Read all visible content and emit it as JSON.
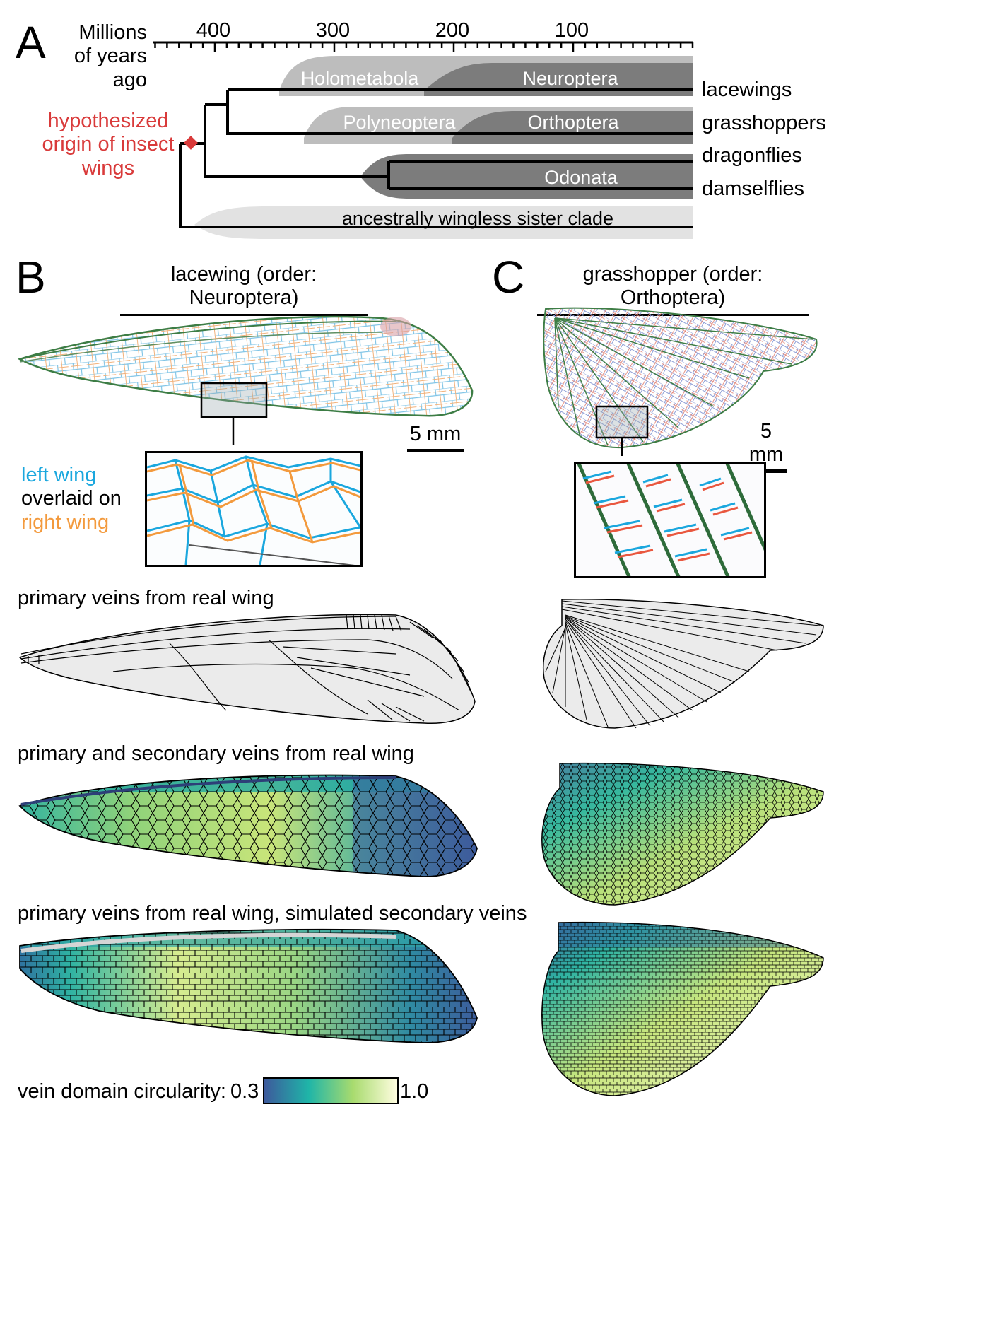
{
  "panels": {
    "a": "A",
    "b": "B",
    "c": "C"
  },
  "timeline": {
    "axis_label": "Millions of years ago",
    "axis_label_lines": [
      "Millions",
      "of years",
      "ago"
    ],
    "ticks": [
      {
        "label": "400",
        "value": 400
      },
      {
        "label": "300",
        "value": 300
      },
      {
        "label": "200",
        "value": 200
      },
      {
        "label": "100",
        "value": 100
      }
    ],
    "origin_label_lines": [
      "hypothesized",
      "origin of insect",
      "wings"
    ],
    "origin_color": "#d93a3a",
    "clades": {
      "holometabola": "Holometabola",
      "neuroptera": "Neuroptera",
      "polyneoptera": "Polyneoptera",
      "orthoptera": "Orthoptera",
      "odonata": "Odonata",
      "wingless": "ancestrally wingless sister clade"
    },
    "taxa": {
      "lacewings": "lacewings",
      "grasshoppers": "grasshoppers",
      "dragonflies": "dragonflies",
      "damselflies": "damselflies"
    },
    "colors": {
      "light": "#bdbdbd",
      "dark": "#7c7c7c",
      "lightest": "#e2e2e2"
    }
  },
  "panel_b": {
    "title": "lacewing (order: Neuroptera)",
    "scale": "5 mm",
    "legend": {
      "left": "left wing",
      "mid": "overlaid on",
      "right": "right wing"
    },
    "legend_colors": {
      "left": "#1aa7de",
      "right": "#f39a3d"
    },
    "row_labels": {
      "primary": "primary veins from real wing",
      "primary_secondary": "primary and secondary veins from real wing",
      "simulated": "primary veins from real wing, simulated secondary veins"
    }
  },
  "panel_c": {
    "title": "grasshopper (order: Orthoptera)",
    "scale": "5 mm"
  },
  "colorbar": {
    "label": "vein domain circularity:",
    "min": "0.3",
    "max": "1.0",
    "stops": [
      "#3d5a9c",
      "#1fb5a8",
      "#a8db6e",
      "#fffde0"
    ]
  }
}
